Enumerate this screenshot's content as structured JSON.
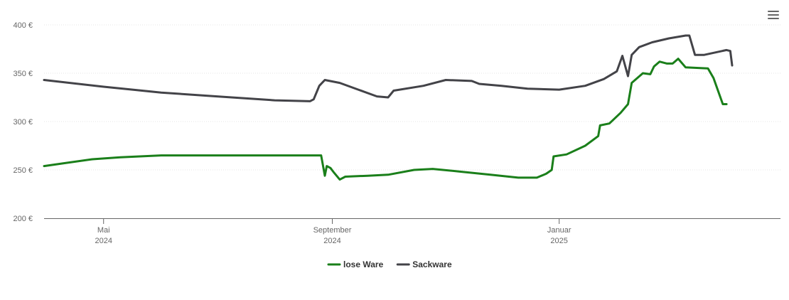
{
  "chart_data": {
    "type": "line",
    "title": "",
    "xlabel": "",
    "ylabel": "",
    "ylim": [
      200,
      400
    ],
    "yticks": [
      {
        "value": 200,
        "label": "200 €"
      },
      {
        "value": 250,
        "label": "250 €"
      },
      {
        "value": 300,
        "label": "300 €"
      },
      {
        "value": 350,
        "label": "350 €"
      },
      {
        "value": 400,
        "label": "400 €"
      }
    ],
    "xlim": [
      "2024-03-30",
      "2025-04-30"
    ],
    "xticks": [
      {
        "date": "2024-05-01",
        "line1": "Mai",
        "line2": "2024"
      },
      {
        "date": "2024-09-01",
        "line1": "September",
        "line2": "2024"
      },
      {
        "date": "2025-01-01",
        "line1": "Januar",
        "line2": "2025"
      }
    ],
    "grid": true,
    "legend_position": "bottom-center",
    "series": [
      {
        "name": "lose Ware",
        "color": "#1a7f1a",
        "points": [
          [
            "2024-03-30",
            254
          ],
          [
            "2024-04-10",
            257
          ],
          [
            "2024-04-25",
            261
          ],
          [
            "2024-05-10",
            263
          ],
          [
            "2024-06-01",
            265
          ],
          [
            "2024-07-01",
            265
          ],
          [
            "2024-08-01",
            265
          ],
          [
            "2024-08-26",
            265
          ],
          [
            "2024-08-28",
            244
          ],
          [
            "2024-08-29",
            254
          ],
          [
            "2024-08-31",
            252
          ],
          [
            "2024-09-02",
            247
          ],
          [
            "2024-09-05",
            240
          ],
          [
            "2024-09-08",
            243
          ],
          [
            "2024-09-20",
            244
          ],
          [
            "2024-10-01",
            245
          ],
          [
            "2024-10-15",
            250
          ],
          [
            "2024-10-25",
            251
          ],
          [
            "2024-11-10",
            248
          ],
          [
            "2024-11-25",
            245
          ],
          [
            "2024-12-10",
            242
          ],
          [
            "2024-12-20",
            242
          ],
          [
            "2024-12-25",
            246
          ],
          [
            "2024-12-28",
            250
          ],
          [
            "2024-12-29",
            264
          ],
          [
            "2025-01-05",
            266
          ],
          [
            "2025-01-15",
            275
          ],
          [
            "2025-01-22",
            285
          ],
          [
            "2025-01-23",
            296
          ],
          [
            "2025-01-28",
            298
          ],
          [
            "2025-02-03",
            309
          ],
          [
            "2025-02-07",
            318
          ],
          [
            "2025-02-09",
            340
          ],
          [
            "2025-02-12",
            345
          ],
          [
            "2025-02-15",
            350
          ],
          [
            "2025-02-19",
            349
          ],
          [
            "2025-02-21",
            357
          ],
          [
            "2025-02-24",
            362
          ],
          [
            "2025-02-28",
            360
          ],
          [
            "2025-03-03",
            360
          ],
          [
            "2025-03-06",
            365
          ],
          [
            "2025-03-10",
            356
          ],
          [
            "2025-03-22",
            355
          ],
          [
            "2025-03-25",
            345
          ],
          [
            "2025-03-30",
            318
          ],
          [
            "2025-04-01",
            318
          ]
        ]
      },
      {
        "name": "Sackware",
        "color": "#434348",
        "points": [
          [
            "2024-03-30",
            343
          ],
          [
            "2024-05-01",
            336
          ],
          [
            "2024-06-01",
            330
          ],
          [
            "2024-07-01",
            326
          ],
          [
            "2024-08-01",
            322
          ],
          [
            "2024-08-20",
            321
          ],
          [
            "2024-08-22",
            323
          ],
          [
            "2024-08-25",
            337
          ],
          [
            "2024-08-28",
            343
          ],
          [
            "2024-09-05",
            340
          ],
          [
            "2024-09-15",
            333
          ],
          [
            "2024-09-25",
            326
          ],
          [
            "2024-10-01",
            325
          ],
          [
            "2024-10-04",
            332
          ],
          [
            "2024-10-20",
            337
          ],
          [
            "2024-11-01",
            343
          ],
          [
            "2024-11-15",
            342
          ],
          [
            "2024-11-19",
            339
          ],
          [
            "2024-12-01",
            337
          ],
          [
            "2024-12-15",
            334
          ],
          [
            "2025-01-01",
            333
          ],
          [
            "2025-01-15",
            337
          ],
          [
            "2025-01-25",
            344
          ],
          [
            "2025-02-01",
            352
          ],
          [
            "2025-02-04",
            368
          ],
          [
            "2025-02-07",
            347
          ],
          [
            "2025-02-09",
            369
          ],
          [
            "2025-02-13",
            377
          ],
          [
            "2025-02-20",
            382
          ],
          [
            "2025-03-01",
            386
          ],
          [
            "2025-03-10",
            389
          ],
          [
            "2025-03-12",
            389
          ],
          [
            "2025-03-15",
            369
          ],
          [
            "2025-03-20",
            369
          ],
          [
            "2025-04-01",
            374
          ],
          [
            "2025-04-03",
            373
          ],
          [
            "2025-04-04",
            358
          ]
        ]
      }
    ]
  },
  "toolbar": {
    "menu_icon": "hamburger-menu-icon"
  }
}
